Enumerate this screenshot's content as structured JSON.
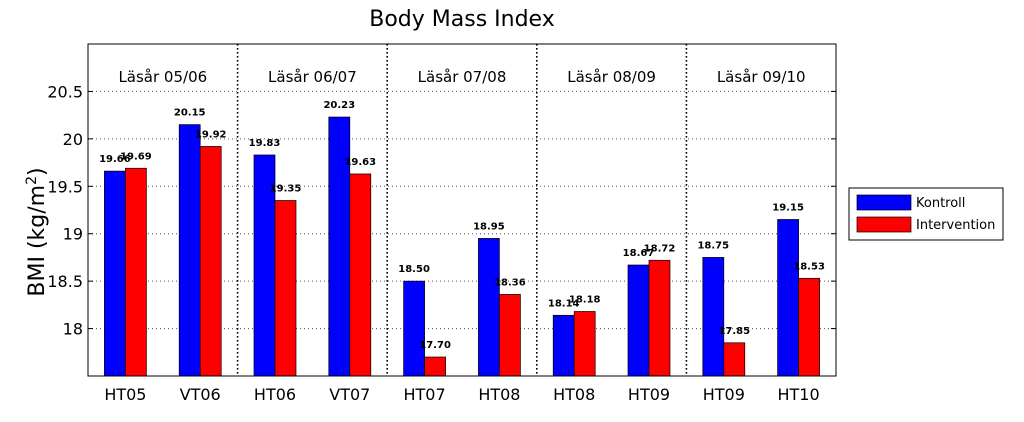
{
  "chart_data": {
    "type": "bar",
    "title": "Body Mass Index",
    "ylabel_main": "BMI (kg/m",
    "ylabel_sup": "2",
    "ylabel_close": ")",
    "ylim": [
      17.5,
      21.0
    ],
    "yticks": [
      18,
      18.5,
      19,
      19.5,
      20,
      20.5
    ],
    "ytick_labels": [
      "18",
      "18.5",
      "19",
      "19.5",
      "20",
      "20.5"
    ],
    "grid": "horizontal dotted",
    "categories": [
      "HT05",
      "VT06",
      "HT06",
      "VT07",
      "HT07",
      "HT08",
      "HT08",
      "HT09",
      "HT09",
      "HT10"
    ],
    "periods": [
      "Läsår 05/06",
      "Läsår 06/07",
      "Läsår 07/08",
      "Läsår 08/09",
      "Läsår 09/10"
    ],
    "series": [
      {
        "name": "Kontroll",
        "color": "#0000ff",
        "values": [
          19.66,
          20.15,
          19.83,
          20.23,
          18.5,
          18.95,
          18.14,
          18.67,
          18.75,
          19.15
        ],
        "labels": [
          "19.66",
          "20.15",
          "19.83",
          "20.23",
          "18.50",
          "18.95",
          "18.14",
          "18.67",
          "18.75",
          "19.15"
        ]
      },
      {
        "name": "Intervention",
        "color": "#ff0000",
        "values": [
          19.69,
          19.92,
          19.35,
          19.63,
          17.7,
          18.36,
          18.18,
          18.72,
          17.85,
          18.53
        ],
        "labels": [
          "19.69",
          "19.92",
          "19.35",
          "19.63",
          "17.70",
          "18.36",
          "18.18",
          "18.72",
          "17.85",
          "18.53"
        ]
      }
    ],
    "legend_position": "right"
  }
}
